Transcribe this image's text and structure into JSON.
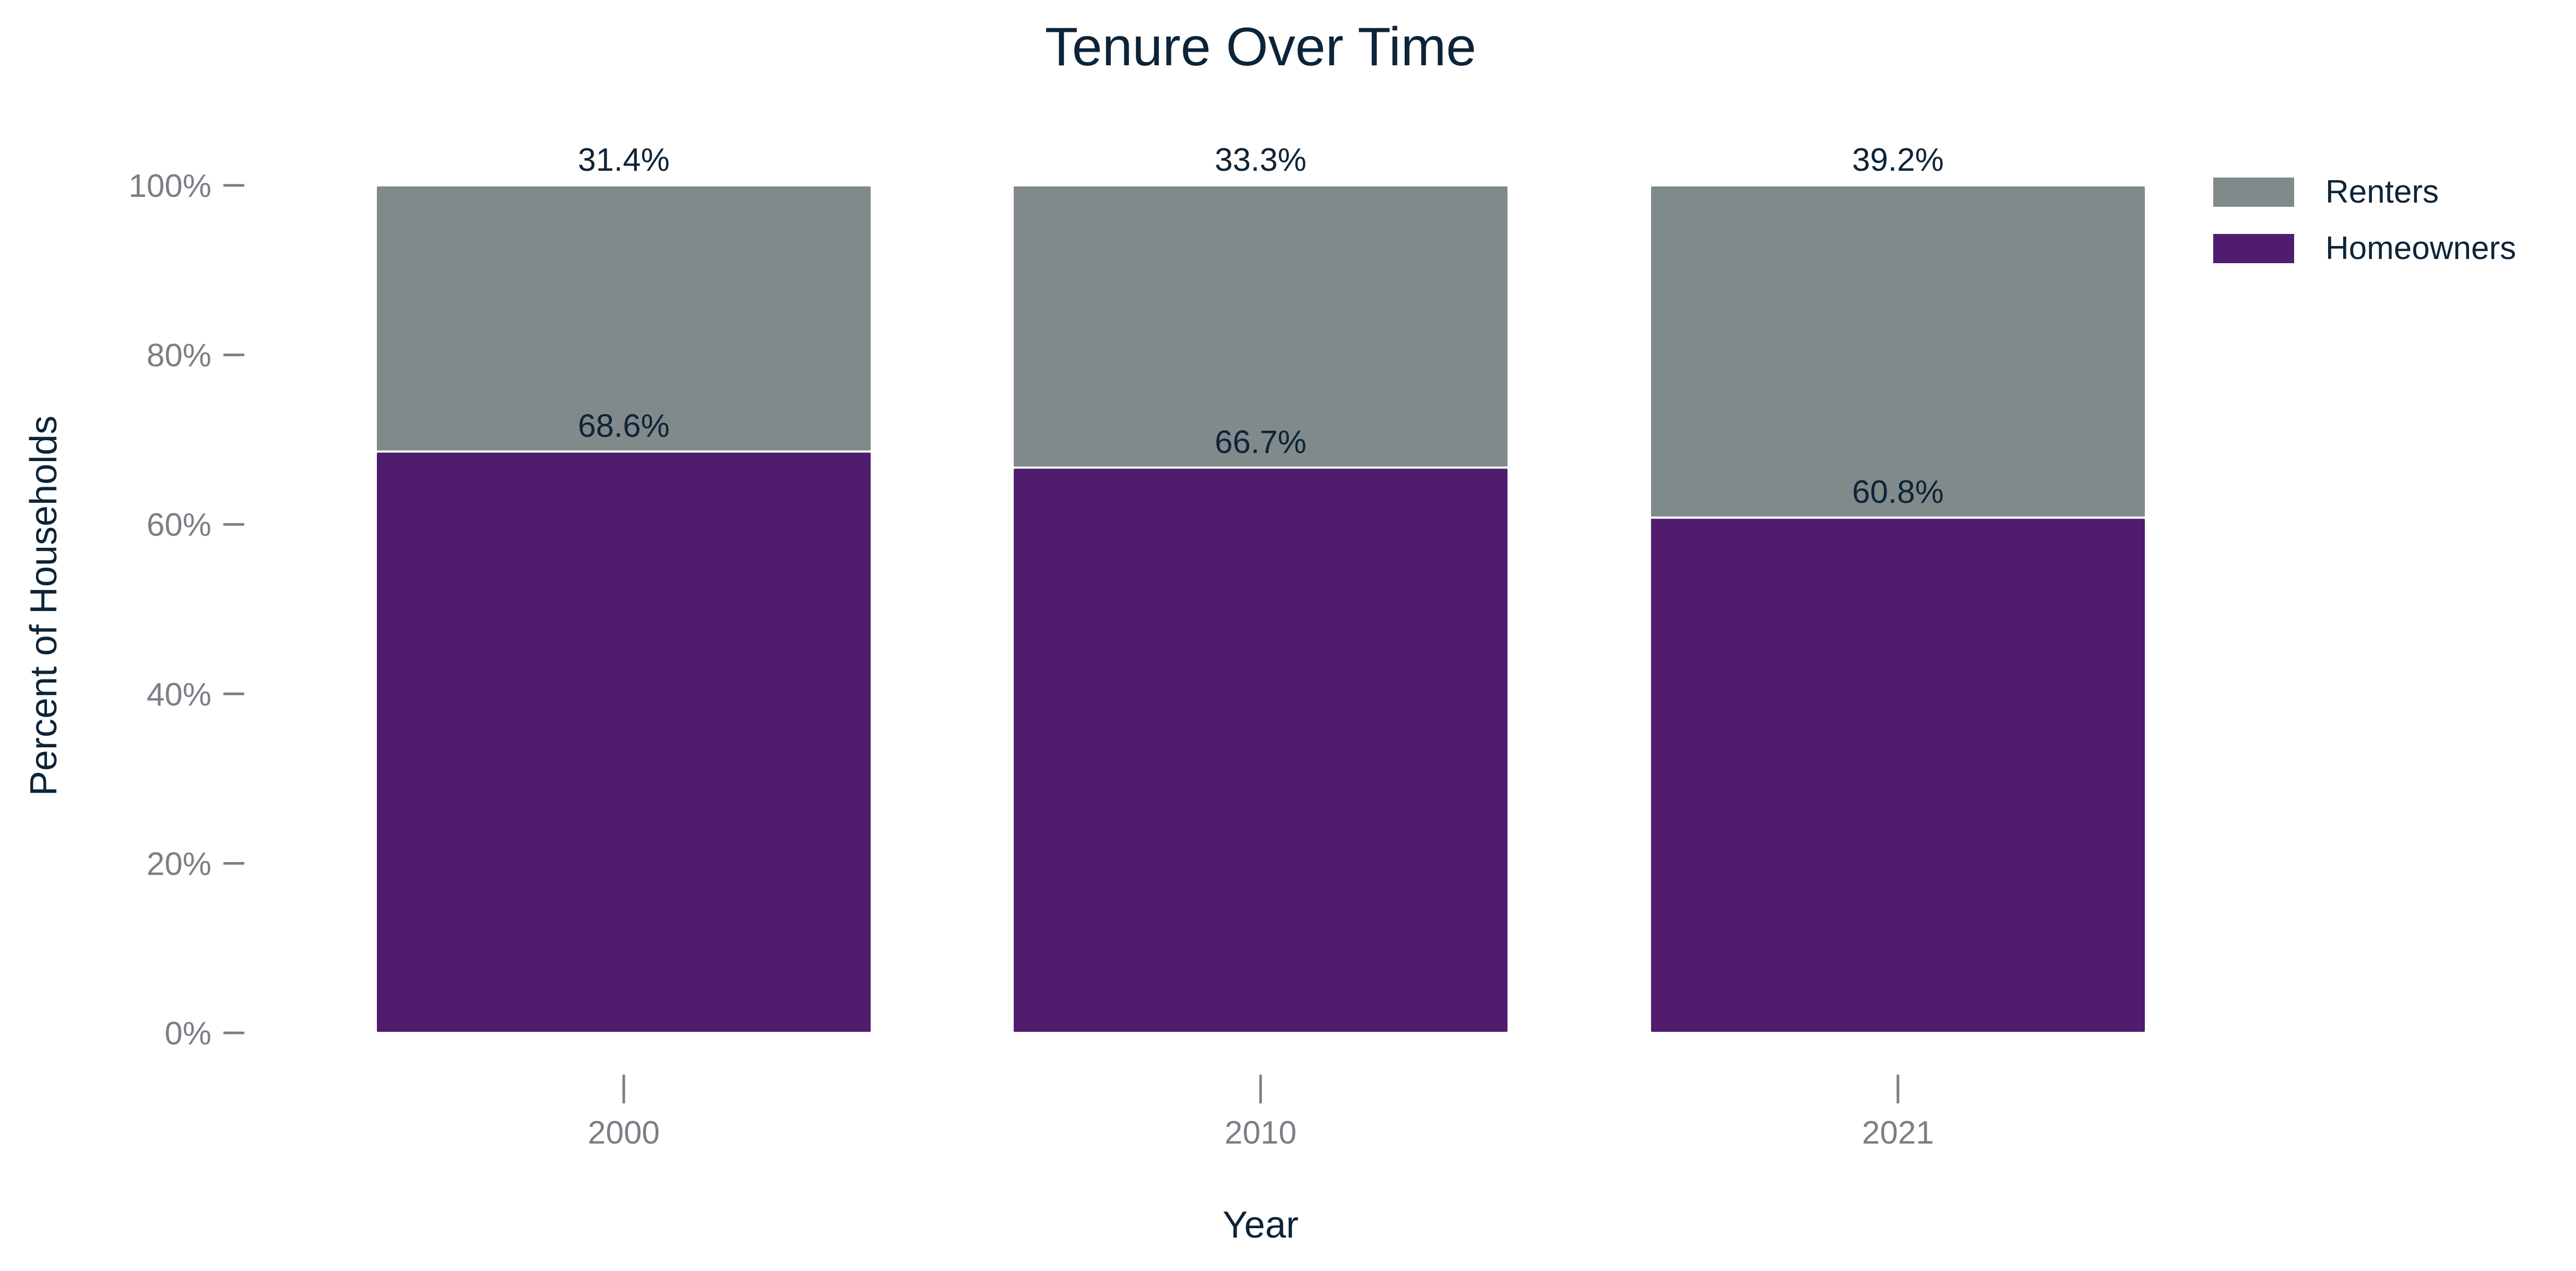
{
  "chart_data": {
    "type": "bar",
    "stacked": true,
    "title": "Tenure Over Time",
    "xlabel": "Year",
    "ylabel": "Percent of Households",
    "categories": [
      "2000",
      "2010",
      "2021"
    ],
    "series": [
      {
        "name": "Homeowners",
        "values": [
          68.6,
          66.7,
          60.8
        ],
        "labels": [
          "68.6%",
          "66.7%",
          "60.8%"
        ],
        "color": "#521c6e"
      },
      {
        "name": "Renters",
        "values": [
          31.4,
          33.3,
          39.2
        ],
        "labels": [
          "31.4%",
          "33.3%",
          "39.2%"
        ],
        "color": "#818a8a"
      }
    ],
    "ylim": [
      0,
      100
    ],
    "yticks": [
      0,
      20,
      40,
      60,
      80,
      100
    ],
    "ytick_labels": [
      "0%",
      "20%",
      "40%",
      "60%",
      "80%",
      "100%"
    ],
    "grid": false,
    "legend_position": "top-right",
    "legend_order": [
      "Renters",
      "Homeowners"
    ]
  }
}
